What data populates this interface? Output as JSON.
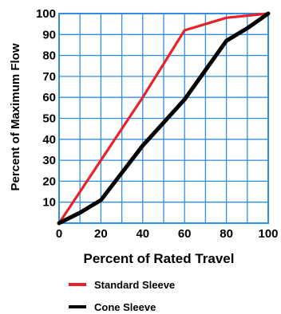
{
  "chart_data": {
    "type": "line",
    "title": "",
    "xlabel": "Percent of Rated Travel",
    "ylabel": "Percent of Maximum Flow",
    "xlim": [
      0,
      100
    ],
    "ylim": [
      0,
      100
    ],
    "xticks": [
      "0",
      "20",
      "40",
      "60",
      "80",
      "100"
    ],
    "yticks": [
      "10",
      "20",
      "30",
      "40",
      "50",
      "60",
      "70",
      "80",
      "90",
      "100"
    ],
    "minor_grid_step": 10,
    "grid": true,
    "legend_position": "bottom",
    "series": [
      {
        "name": "Standard Sleeve",
        "color": "#e8222b",
        "x": [
          0,
          10,
          20,
          30,
          40,
          50,
          60,
          70,
          80,
          90,
          100
        ],
        "y": [
          0,
          15,
          30,
          45,
          60,
          76,
          92,
          95,
          98,
          99,
          100
        ]
      },
      {
        "name": "Cone Sleeve",
        "color": "#000000",
        "x": [
          0,
          10,
          20,
          30,
          40,
          50,
          60,
          70,
          80,
          90,
          100
        ],
        "y": [
          0,
          5,
          11,
          24,
          37,
          48,
          59,
          73,
          87,
          93,
          100
        ]
      }
    ]
  }
}
